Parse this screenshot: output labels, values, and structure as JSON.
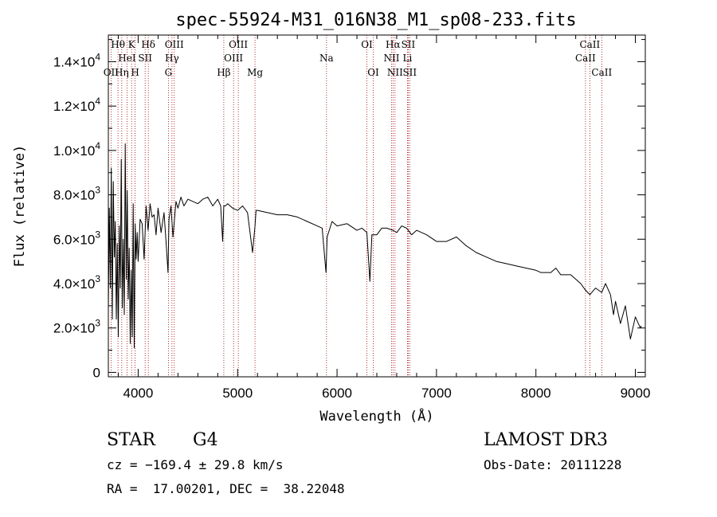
{
  "chart_data": {
    "type": "line",
    "title": "spec-55924-M31_016N38_M1_sp08-233.fits",
    "xlabel": "Wavelength (Å)",
    "ylabel": "Flux (relative)",
    "xlim": [
      3700,
      9100
    ],
    "ylim": [
      -200,
      15200
    ],
    "xticks": [
      4000,
      5000,
      6000,
      7000,
      8000,
      9000
    ],
    "xtick_labels": [
      "4000",
      "5000",
      "6000",
      "7000",
      "8000",
      "9000"
    ],
    "yticks": [
      0,
      2000,
      4000,
      6000,
      8000,
      10000,
      12000,
      14000
    ],
    "ytick_labels": [
      {
        "mant": "0",
        "exp": ""
      },
      {
        "mant": "2.0×10",
        "exp": "3"
      },
      {
        "mant": "4.0×10",
        "exp": "3"
      },
      {
        "mant": "6.0×10",
        "exp": "3"
      },
      {
        "mant": "8.0×10",
        "exp": "3"
      },
      {
        "mant": "1.0×10",
        "exp": "4"
      },
      {
        "mant": "1.2×10",
        "exp": "4"
      },
      {
        "mant": "1.4×10",
        "exp": "4"
      }
    ],
    "series": [
      {
        "name": "flux",
        "x": [
          3700,
          3710,
          3720,
          3730,
          3740,
          3750,
          3760,
          3770,
          3780,
          3790,
          3800,
          3810,
          3820,
          3830,
          3840,
          3850,
          3860,
          3870,
          3880,
          3890,
          3900,
          3910,
          3920,
          3930,
          3940,
          3950,
          3960,
          3970,
          3980,
          3990,
          4000,
          4020,
          4040,
          4060,
          4080,
          4100,
          4120,
          4140,
          4160,
          4180,
          4200,
          4230,
          4260,
          4280,
          4300,
          4310,
          4330,
          4350,
          4380,
          4400,
          4430,
          4460,
          4500,
          4550,
          4600,
          4650,
          4700,
          4750,
          4800,
          4830,
          4850,
          4861,
          4875,
          4900,
          4950,
          5000,
          5050,
          5100,
          5150,
          5175,
          5185,
          5200,
          5300,
          5400,
          5500,
          5600,
          5700,
          5800,
          5850,
          5889,
          5900,
          5950,
          6000,
          6100,
          6200,
          6250,
          6300,
          6330,
          6350,
          6400,
          6450,
          6500,
          6563,
          6600,
          6650,
          6700,
          6750,
          6800,
          6900,
          7000,
          7100,
          7200,
          7300,
          7400,
          7500,
          7600,
          7700,
          7800,
          7900,
          8000,
          8050,
          8100,
          8150,
          8200,
          8250,
          8300,
          8350,
          8400,
          8450,
          8500,
          8542,
          8600,
          8662,
          8700,
          8750,
          8780,
          8800,
          8850,
          8900,
          8950,
          9000,
          9050,
          9060
        ],
        "y": [
          2800,
          7400,
          3800,
          9200,
          2400,
          8600,
          5200,
          6800,
          2400,
          5800,
          1600,
          6600,
          3800,
          9600,
          2900,
          6000,
          2600,
          10300,
          4200,
          8200,
          3300,
          5600,
          1300,
          4600,
          1600,
          7600,
          1100,
          6700,
          5100,
          6300,
          5000,
          6900,
          6700,
          5100,
          7500,
          6400,
          7600,
          7000,
          7100,
          6200,
          7400,
          6300,
          7200,
          5900,
          4500,
          6900,
          7500,
          6100,
          7700,
          7400,
          7900,
          7500,
          7800,
          7700,
          7600,
          7800,
          7900,
          7500,
          7800,
          7500,
          5900,
          7500,
          7500,
          7600,
          7400,
          7300,
          7500,
          7200,
          5400,
          6600,
          7300,
          7300,
          7200,
          7100,
          7100,
          7000,
          6800,
          6600,
          6500,
          4500,
          6100,
          6800,
          6600,
          6700,
          6400,
          6500,
          6300,
          4100,
          6200,
          6200,
          6500,
          6500,
          6400,
          6300,
          6600,
          6500,
          6200,
          6400,
          6200,
          5900,
          5900,
          6100,
          5700,
          5400,
          5200,
          5000,
          4900,
          4800,
          4700,
          4600,
          4500,
          4500,
          4500,
          4700,
          4400,
          4400,
          4400,
          4200,
          4000,
          3700,
          3500,
          3800,
          3600,
          4000,
          3500,
          2600,
          3200,
          2200,
          3000,
          1500,
          2500,
          2000,
          2100
        ]
      }
    ],
    "spectral_lines": [
      {
        "label": "Hθ",
        "wl": 3797,
        "row": 1
      },
      {
        "label": "OII",
        "wl": 3727,
        "row": 3
      },
      {
        "label": "HeI",
        "wl": 3888,
        "row": 2
      },
      {
        "label": "Hη",
        "wl": 3835,
        "row": 3
      },
      {
        "label": "K",
        "wl": 3934,
        "row": 1
      },
      {
        "label": "H",
        "wl": 3969,
        "row": 3
      },
      {
        "label": "SII",
        "wl": 4070,
        "row": 2
      },
      {
        "label": "Hδ",
        "wl": 4102,
        "row": 1
      },
      {
        "label": "OIII",
        "wl": 4363,
        "row": 1
      },
      {
        "label": "Hγ",
        "wl": 4340,
        "row": 2
      },
      {
        "label": "G",
        "wl": 4304,
        "row": 3
      },
      {
        "label": "Hβ",
        "wl": 4861,
        "row": 3
      },
      {
        "label": "OIII",
        "wl": 5007,
        "row": 1
      },
      {
        "label": "OIII",
        "wl": 4959,
        "row": 2
      },
      {
        "label": "Mg",
        "wl": 5175,
        "row": 3
      },
      {
        "label": "Na",
        "wl": 5894,
        "row": 2
      },
      {
        "label": "OI",
        "wl": 6300,
        "row": 1
      },
      {
        "label": "OI",
        "wl": 6364,
        "row": 3
      },
      {
        "label": "Hα",
        "wl": 6563,
        "row": 1
      },
      {
        "label": "NII",
        "wl": 6548,
        "row": 2
      },
      {
        "label": "NII",
        "wl": 6583,
        "row": 3
      },
      {
        "label": "SII",
        "wl": 6716,
        "row": 1
      },
      {
        "label": "Li",
        "wl": 6708,
        "row": 2
      },
      {
        "label": "SII",
        "wl": 6731,
        "row": 3
      },
      {
        "label": "CaII",
        "wl": 8542,
        "row": 1
      },
      {
        "label": "CaII",
        "wl": 8498,
        "row": 2
      },
      {
        "label": "CaII",
        "wl": 8662,
        "row": 3
      }
    ]
  },
  "info": {
    "class_label": "STAR",
    "subclass": "G4",
    "survey": "LAMOST DR3",
    "velocity": "cz = −169.4 ± 29.8 km/s",
    "obs_date": "Obs-Date: 20111228",
    "coords": "RA =  17.00201, DEC =  38.22048"
  },
  "colors": {
    "spectrum": "#000000",
    "line_markers": "#a00000",
    "axes": "#000000"
  }
}
